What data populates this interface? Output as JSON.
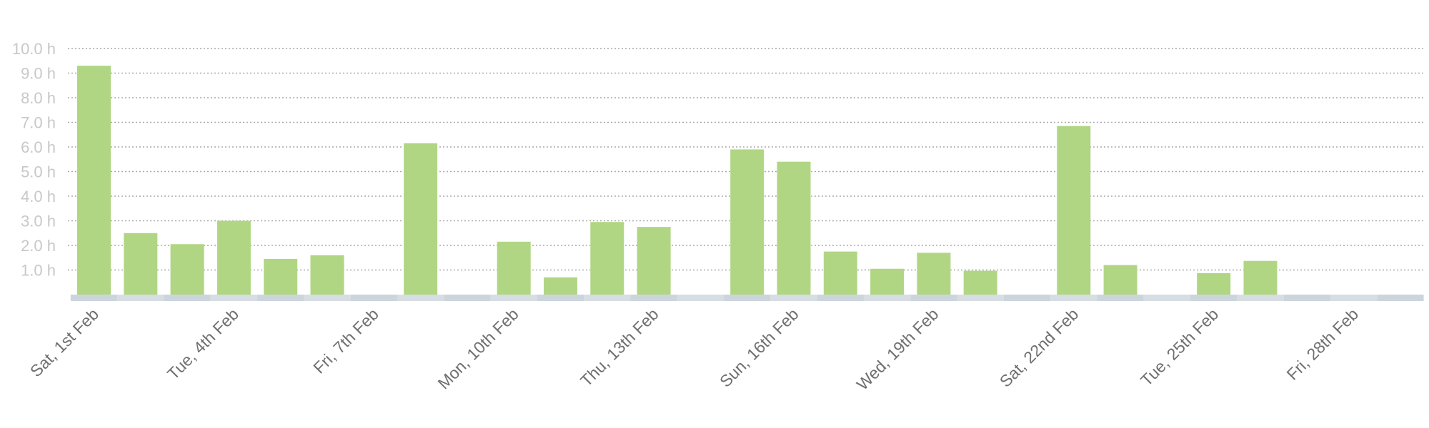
{
  "chart_data": {
    "type": "bar",
    "unit_suffix": " h",
    "ylim": [
      0,
      10
    ],
    "yticks": [
      {
        "value": 1,
        "label": "1.0 h"
      },
      {
        "value": 2,
        "label": "2.0 h"
      },
      {
        "value": 3,
        "label": "3.0 h"
      },
      {
        "value": 4,
        "label": "4.0 h"
      },
      {
        "value": 5,
        "label": "5.0 h"
      },
      {
        "value": 6,
        "label": "6.0 h"
      },
      {
        "value": 7,
        "label": "7.0 h"
      },
      {
        "value": 8,
        "label": "8.0 h"
      },
      {
        "value": 9,
        "label": "9.0 h"
      },
      {
        "value": 10,
        "label": "10.0 h"
      }
    ],
    "grid": true,
    "days": [
      1,
      2,
      3,
      4,
      5,
      6,
      7,
      8,
      9,
      10,
      11,
      12,
      13,
      14,
      15,
      16,
      17,
      18,
      19,
      20,
      21,
      22,
      23,
      24,
      25,
      26,
      27,
      28,
      29
    ],
    "values": [
      9.3,
      2.5,
      2.05,
      3.0,
      1.45,
      1.6,
      0,
      6.15,
      0,
      2.15,
      0.7,
      2.95,
      2.75,
      0,
      5.9,
      5.4,
      1.75,
      1.05,
      1.7,
      0.97,
      0,
      6.85,
      1.2,
      0,
      0.87,
      1.37,
      0,
      0,
      0
    ],
    "xtick_labels": [
      {
        "day": 1,
        "label": "Sat, 1st Feb"
      },
      {
        "day": 4,
        "label": "Tue, 4th Feb"
      },
      {
        "day": 7,
        "label": "Fri, 7th Feb"
      },
      {
        "day": 10,
        "label": "Mon, 10th Feb"
      },
      {
        "day": 13,
        "label": "Thu, 13th Feb"
      },
      {
        "day": 16,
        "label": "Sun, 16th Feb"
      },
      {
        "day": 19,
        "label": "Wed, 19th Feb"
      },
      {
        "day": 22,
        "label": "Sat, 22nd Feb"
      },
      {
        "day": 25,
        "label": "Tue, 25th Feb"
      },
      {
        "day": 28,
        "label": "Fri, 28th Feb"
      }
    ],
    "colors": {
      "bar": "#b0d683",
      "baseline": "#ccd5dc",
      "grid": "#a9a9a9",
      "ytick": "#c8c8c8",
      "xtick": "#6f6f6f"
    }
  }
}
